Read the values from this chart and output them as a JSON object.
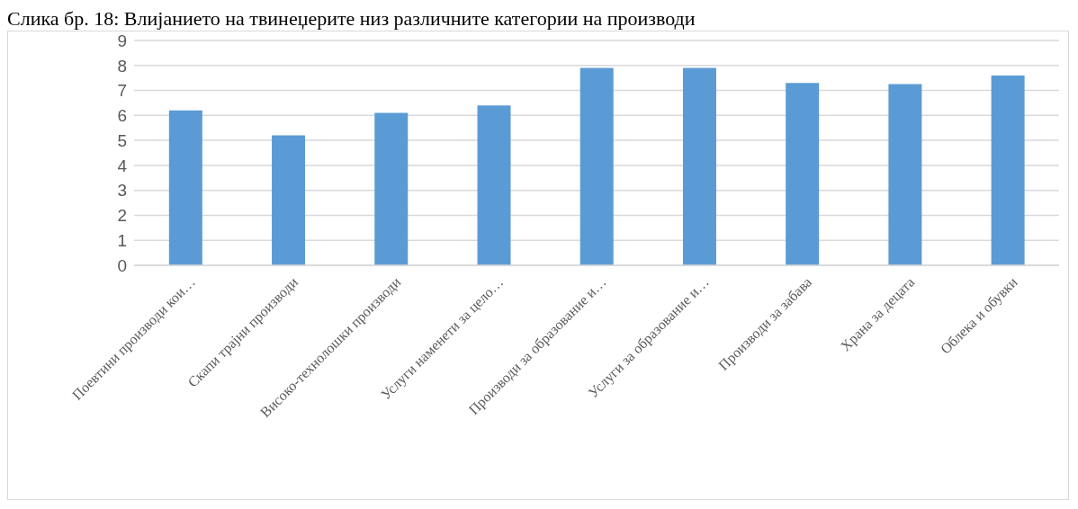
{
  "chart_data": {
    "type": "bar",
    "title": "Слика бр. 18: Влијанието на твинеџерите низ различните категории на производи",
    "categories": [
      "Поевтини производи кои…",
      "Скапи трајни производи",
      "Високо-технолошки  производи",
      "Услуги наменети за цело…",
      "Производи за образование и…",
      "Услуги за образование и…",
      "Производи за забава",
      "Храна за децата",
      "Облека и обувки"
    ],
    "values": [
      6.2,
      5.2,
      6.1,
      6.4,
      7.9,
      7.9,
      7.3,
      7.25,
      7.6
    ],
    "color": "#5b9bd5",
    "ylim": [
      0,
      9
    ],
    "yticks": [
      0,
      1,
      2,
      3,
      4,
      5,
      6,
      7,
      8,
      9
    ],
    "grid": "y"
  }
}
